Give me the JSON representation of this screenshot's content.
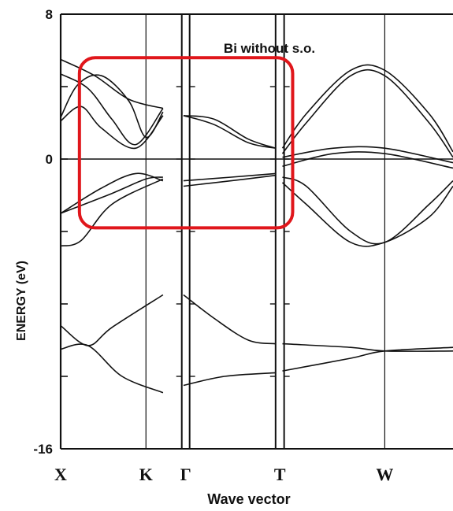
{
  "chart_data": {
    "type": "line",
    "title": "Bi without s.o.",
    "xlabel": "Wave vector",
    "ylabel": "ENERGY (eV)",
    "ylim": [
      -16,
      8
    ],
    "yticks": [
      {
        "value": 8,
        "label": "8"
      },
      {
        "value": 0,
        "label": "0"
      },
      {
        "value": -16,
        "label": "-16"
      }
    ],
    "k_points": [
      "X",
      "K",
      "Γ",
      "T",
      "W"
    ],
    "x_max": 11.5,
    "vlines": [
      2.5,
      9.5
    ],
    "panel_breaks": [
      [
        3.55,
        3.78
      ],
      [
        6.3,
        6.55
      ]
    ],
    "panel_ticks": [
      3.55,
      3.78,
      6.3,
      6.55
    ],
    "tick_energies": [
      4,
      -4,
      -8,
      -12
    ],
    "highlight_box": {
      "x0": 0.55,
      "x1": 6.8,
      "y0": 5.6,
      "y1": -3.8
    },
    "series": [
      {
        "values": [
          [
            0,
            5.5
          ],
          [
            1,
            4.6
          ],
          [
            2,
            3.3
          ],
          [
            3,
            2.8
          ]
        ]
      },
      {
        "values": [
          [
            0,
            4.7
          ],
          [
            0.8,
            3.9
          ],
          [
            1.5,
            2.2
          ],
          [
            2.2,
            0.8
          ],
          [
            3,
            2.8
          ]
        ]
      },
      {
        "values": [
          [
            0,
            2.3
          ],
          [
            0.5,
            4.1
          ],
          [
            1.2,
            4.6
          ],
          [
            2,
            3.2
          ],
          [
            2.5,
            1.2
          ],
          [
            3,
            2.6
          ]
        ]
      },
      {
        "values": [
          [
            0,
            2.1
          ],
          [
            0.6,
            2.9
          ],
          [
            1.2,
            1.7
          ],
          [
            2.2,
            0.6
          ],
          [
            3,
            2.4
          ]
        ]
      },
      {
        "values": [
          [
            0,
            -3.0
          ],
          [
            1.2,
            -1.6
          ],
          [
            2.2,
            -0.8
          ],
          [
            3,
            -1.2
          ]
        ]
      },
      {
        "values": [
          [
            0,
            -3.0
          ],
          [
            1.5,
            -1.9
          ],
          [
            2.5,
            -1.1
          ],
          [
            3,
            -1.0
          ]
        ]
      },
      {
        "values": [
          [
            0,
            -4.8
          ],
          [
            0.6,
            -4.5
          ],
          [
            1.5,
            -2.5
          ],
          [
            3,
            -1.1
          ]
        ]
      },
      {
        "values": [
          [
            0,
            -9.2
          ],
          [
            0.8,
            -10.3
          ],
          [
            1.5,
            -9.3
          ],
          [
            3,
            -7.5
          ]
        ]
      },
      {
        "values": [
          [
            0,
            -10.5
          ],
          [
            0.8,
            -10.3
          ],
          [
            1.8,
            -12.0
          ],
          [
            3,
            -12.9
          ]
        ]
      },
      {
        "values": [
          [
            3.6,
            2.4
          ],
          [
            4.5,
            2.2
          ],
          [
            5.5,
            1.1
          ],
          [
            6.3,
            0.6
          ]
        ]
      },
      {
        "values": [
          [
            3.6,
            2.4
          ],
          [
            4.5,
            1.9
          ],
          [
            5.5,
            0.9
          ],
          [
            6.3,
            0.6
          ]
        ]
      },
      {
        "values": [
          [
            3.6,
            -1.2
          ],
          [
            5,
            -1.0
          ],
          [
            6.3,
            -0.8
          ]
        ]
      },
      {
        "values": [
          [
            3.6,
            -1.5
          ],
          [
            5,
            -1.2
          ],
          [
            6.3,
            -0.9
          ]
        ]
      },
      {
        "values": [
          [
            3.6,
            -7.5
          ],
          [
            4.5,
            -8.8
          ],
          [
            5.5,
            -10.0
          ],
          [
            6.3,
            -10.2
          ]
        ]
      },
      {
        "values": [
          [
            3.6,
            -12.5
          ],
          [
            4.8,
            -12.0
          ],
          [
            6.3,
            -11.8
          ]
        ]
      },
      {
        "values": [
          [
            6.5,
            0.6
          ],
          [
            7.2,
            2.5
          ],
          [
            8.5,
            4.9
          ],
          [
            9.5,
            4.9
          ],
          [
            10.8,
            2.5
          ],
          [
            11.5,
            0.4
          ]
        ]
      },
      {
        "values": [
          [
            6.5,
            0.3
          ],
          [
            7.2,
            2.0
          ],
          [
            8.5,
            4.6
          ],
          [
            9.5,
            4.6
          ],
          [
            10.8,
            2.0
          ],
          [
            11.5,
            0.1
          ]
        ]
      },
      {
        "values": [
          [
            6.5,
            0.1
          ],
          [
            8,
            0.6
          ],
          [
            9.5,
            0.6
          ],
          [
            11.5,
            -0.2
          ]
        ]
      },
      {
        "values": [
          [
            6.5,
            -0.4
          ],
          [
            8,
            0.3
          ],
          [
            9.5,
            0.3
          ],
          [
            11.5,
            -0.5
          ]
        ]
      },
      {
        "values": [
          [
            6.5,
            -1.0
          ],
          [
            7.2,
            -1.5
          ],
          [
            8.5,
            -4.0
          ],
          [
            9.5,
            -4.6
          ],
          [
            10.8,
            -2.5
          ],
          [
            11.5,
            -1.2
          ]
        ]
      },
      {
        "values": [
          [
            6.5,
            -1.3
          ],
          [
            7.2,
            -2.5
          ],
          [
            8.5,
            -4.6
          ],
          [
            9.5,
            -4.6
          ],
          [
            10.8,
            -3.2
          ],
          [
            11.5,
            -1.5
          ]
        ]
      },
      {
        "values": [
          [
            6.5,
            -10.2
          ],
          [
            8.5,
            -10.4
          ],
          [
            9.5,
            -10.6
          ],
          [
            11.5,
            -10.6
          ]
        ]
      },
      {
        "values": [
          [
            6.5,
            -11.7
          ],
          [
            8.5,
            -11.0
          ],
          [
            9.5,
            -10.6
          ],
          [
            11.5,
            -10.4
          ]
        ]
      }
    ],
    "colors": {
      "bands": "#111111",
      "highlight": "#e0161b",
      "axis": "#111111"
    },
    "grid": false
  }
}
